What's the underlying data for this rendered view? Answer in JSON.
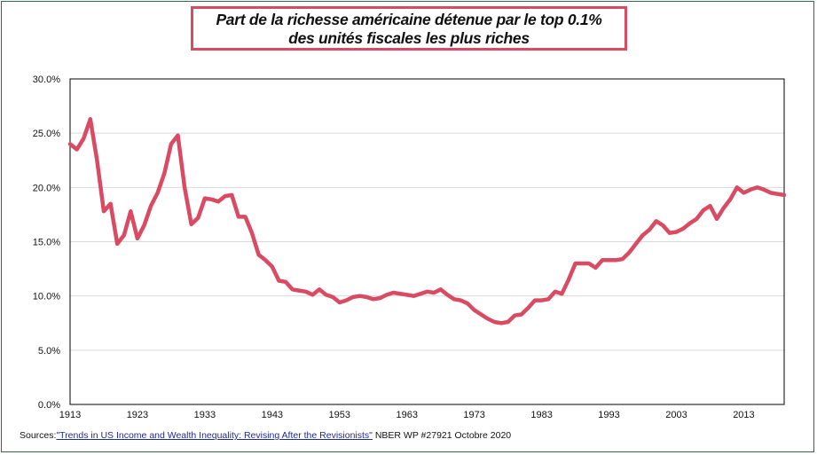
{
  "title": {
    "line1": "Part de la richesse américaine détenue par le top 0.1%",
    "line2": "des unités fiscales les plus riches"
  },
  "source": {
    "prefix": "Sources:",
    "link_text": "\"Trends in US Income and Wealth Inequality: Revising After the Revisionists\"",
    "suffix": " NBER WP #27921 Octobre 2020"
  },
  "colors": {
    "line": "#d94a63",
    "grid": "#d9d9d9",
    "frame": "#2e6b4f"
  },
  "chart_data": {
    "type": "line",
    "title": "Part de la richesse américaine détenue par le top 0.1% des unités fiscales les plus riches",
    "xlim": [
      1913,
      2019
    ],
    "ylim": [
      0,
      0.3
    ],
    "grid": true,
    "x_ticks": [
      "1913",
      "1923",
      "1933",
      "1943",
      "1953",
      "1963",
      "1973",
      "1983",
      "1993",
      "2003",
      "2013"
    ],
    "y_ticks": [
      "0.0%",
      "5.0%",
      "10.0%",
      "15.0%",
      "20.0%",
      "25.0%",
      "30.0%"
    ],
    "series": [
      {
        "x": [
          1913,
          1914,
          1915,
          1916,
          1917,
          1918,
          1919,
          1920,
          1921,
          1922,
          1923,
          1924,
          1925,
          1926,
          1927,
          1928,
          1929,
          1930,
          1931,
          1932,
          1933,
          1934,
          1935,
          1936,
          1937,
          1938,
          1939,
          1940,
          1941,
          1942,
          1943,
          1944,
          1945,
          1946,
          1947,
          1948,
          1949,
          1950,
          1951,
          1952,
          1953,
          1954,
          1955,
          1956,
          1957,
          1958,
          1959,
          1960,
          1961,
          1962,
          1963,
          1964,
          1965,
          1966,
          1967,
          1968,
          1969,
          1970,
          1971,
          1972,
          1973,
          1974,
          1975,
          1976,
          1977,
          1978,
          1979,
          1980,
          1981,
          1982,
          1983,
          1984,
          1985,
          1986,
          1987,
          1988,
          1989,
          1990,
          1991,
          1992,
          1993,
          1994,
          1995,
          1996,
          1997,
          1998,
          1999,
          2000,
          2001,
          2002,
          2003,
          2004,
          2005,
          2006,
          2007,
          2008,
          2009,
          2010,
          2011,
          2012,
          2013,
          2014,
          2015,
          2016,
          2017,
          2018,
          2019
        ],
        "values": [
          0.24,
          0.235,
          0.245,
          0.263,
          0.225,
          0.178,
          0.185,
          0.148,
          0.156,
          0.178,
          0.153,
          0.165,
          0.183,
          0.195,
          0.213,
          0.24,
          0.248,
          0.2,
          0.166,
          0.172,
          0.19,
          0.189,
          0.187,
          0.192,
          0.193,
          0.173,
          0.173,
          0.158,
          0.138,
          0.133,
          0.127,
          0.114,
          0.113,
          0.106,
          0.105,
          0.104,
          0.101,
          0.106,
          0.101,
          0.099,
          0.094,
          0.096,
          0.099,
          0.1,
          0.099,
          0.097,
          0.098,
          0.101,
          0.103,
          0.102,
          0.101,
          0.1,
          0.102,
          0.104,
          0.103,
          0.106,
          0.101,
          0.097,
          0.096,
          0.093,
          0.087,
          0.083,
          0.079,
          0.076,
          0.075,
          0.076,
          0.082,
          0.083,
          0.089,
          0.096,
          0.096,
          0.097,
          0.104,
          0.102,
          0.115,
          0.13,
          0.13,
          0.13,
          0.126,
          0.133,
          0.133,
          0.133,
          0.134,
          0.14,
          0.148,
          0.156,
          0.161,
          0.169,
          0.165,
          0.158,
          0.159,
          0.162,
          0.167,
          0.171,
          0.179,
          0.183,
          0.171,
          0.181,
          0.189,
          0.2,
          0.195,
          0.198,
          0.2,
          0.198,
          0.195,
          0.194,
          0.193
        ]
      }
    ]
  }
}
